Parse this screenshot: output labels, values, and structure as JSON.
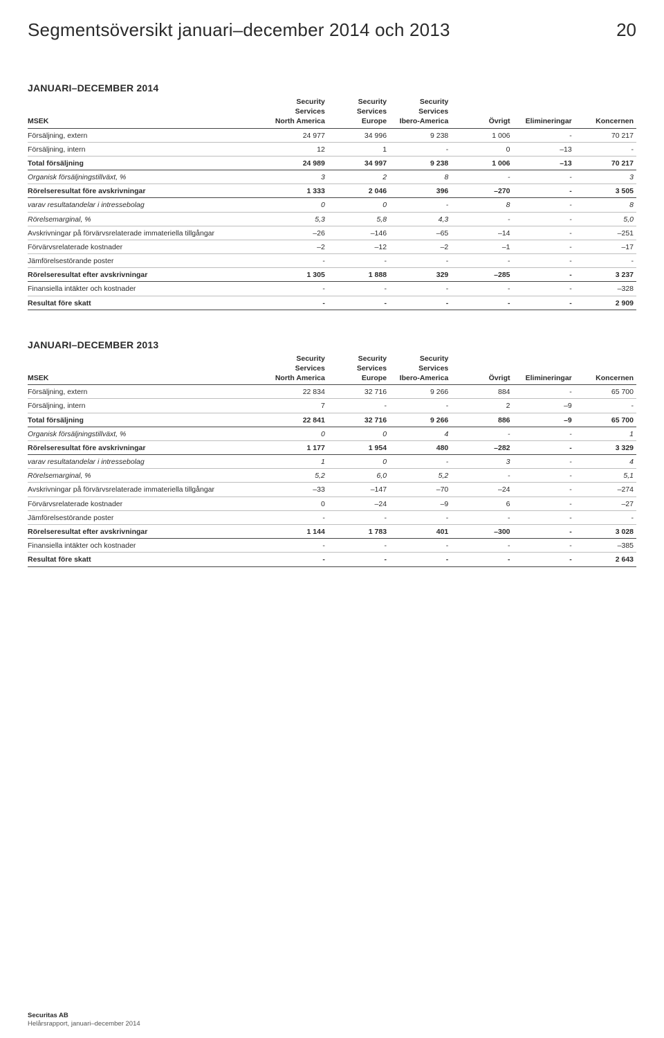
{
  "page": {
    "title": "Segmentsöversikt januari–december 2014 och 2013",
    "number": "20"
  },
  "columns": [
    {
      "label": "MSEK"
    },
    {
      "line1": "Security",
      "line2": "Services",
      "line3": "North America"
    },
    {
      "line1": "Security",
      "line2": "Services",
      "line3": "Europe"
    },
    {
      "line1": "Security",
      "line2": "Services",
      "line3": "Ibero-America"
    },
    {
      "line3": "Övrigt"
    },
    {
      "line3": "Elimineringar"
    },
    {
      "line3": "Koncernen"
    }
  ],
  "tables": [
    {
      "title": "JANUARI–DECEMBER 2014",
      "rows": [
        {
          "style": "",
          "c": [
            "Försäljning, extern",
            "24 977",
            "34 996",
            "9 238",
            "1 006",
            "-",
            "70 217"
          ]
        },
        {
          "style": "",
          "c": [
            "Försäljning, intern",
            "12",
            "1",
            "-",
            "0",
            "–13",
            "-"
          ]
        },
        {
          "style": "bold-row",
          "c": [
            "Total försäljning",
            "24 989",
            "34 997",
            "9 238",
            "1 006",
            "–13",
            "70 217"
          ]
        },
        {
          "style": "italic-row",
          "c": [
            "Organisk försäljningstillväxt, %",
            "3",
            "2",
            "8",
            "-",
            "-",
            "3"
          ]
        },
        {
          "style": "bold-row",
          "c": [
            "Rörelseresultat före avskrivningar",
            "1 333",
            "2 046",
            "396",
            "–270",
            "-",
            "3 505"
          ]
        },
        {
          "style": "italic-row",
          "c": [
            "varav resultatandelar i intressebolag",
            "0",
            "0",
            "-",
            "8",
            "-",
            "8"
          ]
        },
        {
          "style": "italic-row",
          "c": [
            "Rörelsemarginal, %",
            "5,3",
            "5,8",
            "4,3",
            "-",
            "-",
            "5,0"
          ]
        },
        {
          "style": "",
          "c": [
            "Avskrivningar på förvärvsrelaterade immateriella tillgångar",
            "–26",
            "–146",
            "–65",
            "–14",
            "-",
            "–251"
          ]
        },
        {
          "style": "",
          "c": [
            "Förvärvsrelaterade kostnader",
            "–2",
            "–12",
            "–2",
            "–1",
            "-",
            "–17"
          ]
        },
        {
          "style": "",
          "c": [
            "Jämförelsestörande poster",
            "-",
            "-",
            "-",
            "-",
            "-",
            "-"
          ]
        },
        {
          "style": "bold-row",
          "c": [
            "Rörelseresultat efter avskrivningar",
            "1 305",
            "1 888",
            "329",
            "–285",
            "-",
            "3 237"
          ]
        },
        {
          "style": "",
          "c": [
            "Finansiella intäkter och kostnader",
            "-",
            "-",
            "-",
            "-",
            "-",
            "–328"
          ]
        },
        {
          "style": "bold-row",
          "c": [
            "Resultat före skatt",
            "-",
            "-",
            "-",
            "-",
            "-",
            "2 909"
          ]
        }
      ]
    },
    {
      "title": "JANUARI–DECEMBER 2013",
      "rows": [
        {
          "style": "",
          "c": [
            "Försäljning, extern",
            "22 834",
            "32 716",
            "9 266",
            "884",
            "-",
            "65 700"
          ]
        },
        {
          "style": "",
          "c": [
            "Försäljning, intern",
            "7",
            "-",
            "-",
            "2",
            "–9",
            "-"
          ]
        },
        {
          "style": "bold-row",
          "c": [
            "Total försäljning",
            "22 841",
            "32 716",
            "9 266",
            "886",
            "–9",
            "65 700"
          ]
        },
        {
          "style": "italic-row",
          "c": [
            "Organisk försäljningstillväxt, %",
            "0",
            "0",
            "4",
            "-",
            "-",
            "1"
          ]
        },
        {
          "style": "bold-row",
          "c": [
            "Rörelseresultat före avskrivningar",
            "1 177",
            "1 954",
            "480",
            "–282",
            "-",
            "3 329"
          ]
        },
        {
          "style": "italic-row",
          "c": [
            "varav resultatandelar i intressebolag",
            "1",
            "0",
            "-",
            "3",
            "-",
            "4"
          ]
        },
        {
          "style": "italic-row",
          "c": [
            "Rörelsemarginal, %",
            "5,2",
            "6,0",
            "5,2",
            "-",
            "-",
            "5,1"
          ]
        },
        {
          "style": "",
          "c": [
            "Avskrivningar på förvärvsrelaterade immateriella tillgångar",
            "–33",
            "–147",
            "–70",
            "–24",
            "-",
            "–274"
          ]
        },
        {
          "style": "",
          "c": [
            "Förvärvsrelaterade kostnader",
            "0",
            "–24",
            "–9",
            "6",
            "-",
            "–27"
          ]
        },
        {
          "style": "",
          "c": [
            "Jämförelsestörande poster",
            "-",
            "-",
            "-",
            "-",
            "-",
            "-"
          ]
        },
        {
          "style": "bold-row",
          "c": [
            "Rörelseresultat efter avskrivningar",
            "1 144",
            "1 783",
            "401",
            "–300",
            "-",
            "3 028"
          ]
        },
        {
          "style": "",
          "c": [
            "Finansiella intäkter och kostnader",
            "-",
            "-",
            "-",
            "-",
            "-",
            "–385"
          ]
        },
        {
          "style": "bold-row",
          "c": [
            "Resultat före skatt",
            "-",
            "-",
            "-",
            "-",
            "-",
            "2 643"
          ]
        }
      ]
    }
  ],
  "footer": {
    "line1": "Securitas AB",
    "line2": "Helårsrapport, januari–december 2014"
  }
}
